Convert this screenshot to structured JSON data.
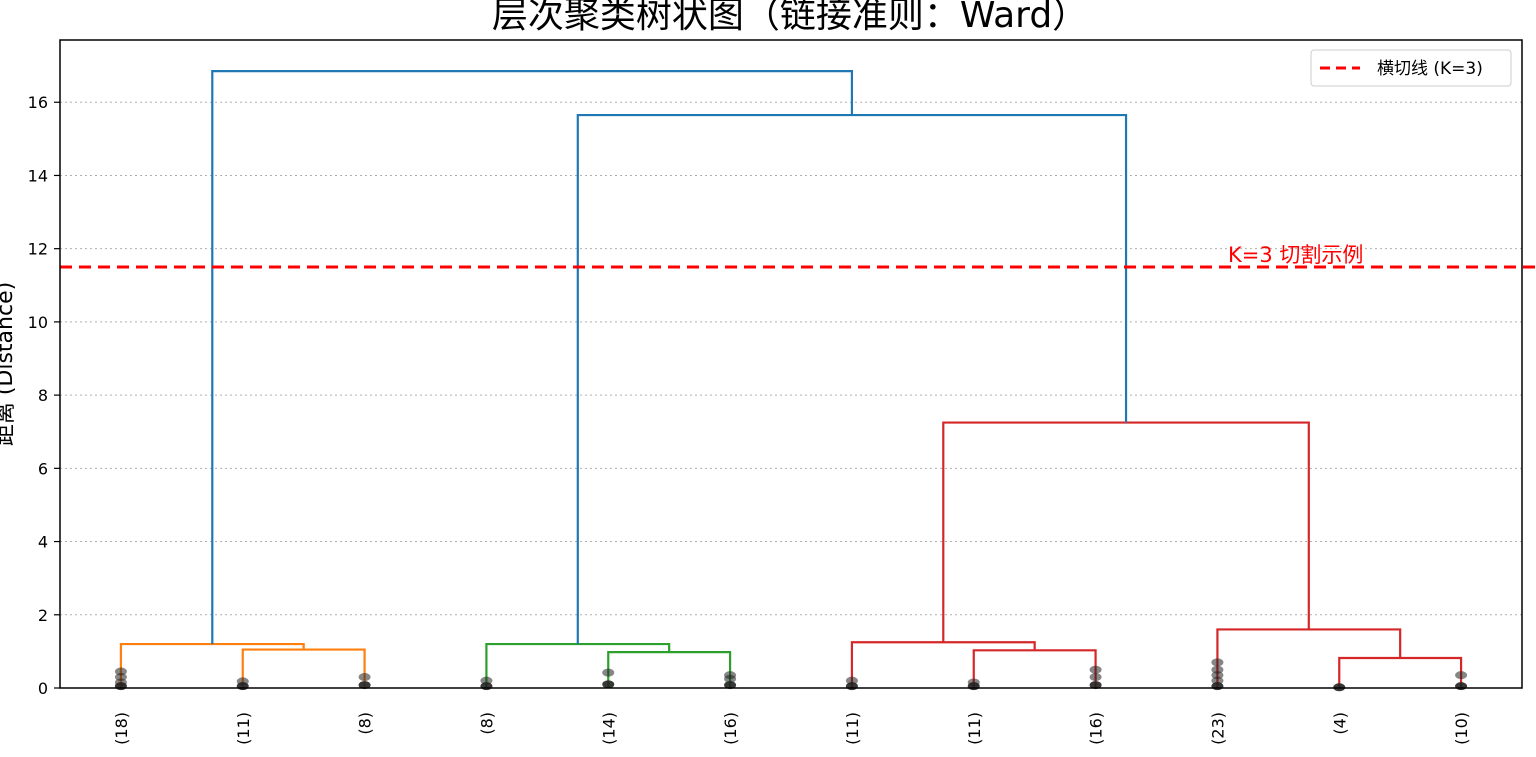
{
  "chart_data": {
    "type": "dendrogram",
    "title": "层次聚类树状图（链接准则：Ward）",
    "ylabel": "距离 (Distance)",
    "ylim": [
      0,
      17.7
    ],
    "yticks": [
      0,
      2,
      4,
      6,
      8,
      10,
      12,
      14,
      16
    ],
    "grid": "y-dotted",
    "leaf_labels": [
      "(18)",
      "(11)",
      "(8)",
      "(8)",
      "(14)",
      "(16)",
      "(11)",
      "(11)",
      "(16)",
      "(23)",
      "(4)",
      "(10)"
    ],
    "leaf_counts": [
      18,
      11,
      8,
      8,
      14,
      16,
      11,
      11,
      16,
      23,
      4,
      10
    ],
    "leaf_dot_heights": [
      [
        0.05,
        0.15,
        0.3,
        0.45
      ],
      [
        0.05,
        0.18
      ],
      [
        0.08,
        0.3
      ],
      [
        0.05,
        0.2
      ],
      [
        0.1,
        0.42
      ],
      [
        0.08,
        0.25,
        0.35
      ],
      [
        0.05,
        0.2
      ],
      [
        0.05,
        0.15
      ],
      [
        0.08,
        0.3,
        0.5
      ],
      [
        0.05,
        0.2,
        0.35,
        0.5,
        0.7
      ],
      [
        0.02
      ],
      [
        0.05,
        0.35
      ]
    ],
    "links": [
      {
        "left": 1,
        "right": 2,
        "height": 1.05,
        "color": "#ff7f0e"
      },
      {
        "left": 0,
        "right": "L0",
        "height": 1.2,
        "color": "#ff7f0e"
      },
      {
        "left": 4,
        "right": 5,
        "height": 0.98,
        "color": "#2ca02c"
      },
      {
        "left": 3,
        "right": "L2",
        "height": 1.2,
        "color": "#2ca02c"
      },
      {
        "left": 7,
        "right": 8,
        "height": 1.03,
        "color": "#d62728"
      },
      {
        "left": 6,
        "right": "L4",
        "height": 1.25,
        "color": "#d62728"
      },
      {
        "left": 10,
        "right": 11,
        "height": 0.82,
        "color": "#d62728"
      },
      {
        "left": 9,
        "right": "L6",
        "height": 1.6,
        "color": "#d62728"
      },
      {
        "left": "L5",
        "right": "L7",
        "height": 7.25,
        "color": "#d62728"
      },
      {
        "left": "L3",
        "right": "L8",
        "height": 15.65,
        "color": "#1f77b4"
      },
      {
        "left": "L1",
        "right": "L9",
        "height": 16.85,
        "color": "#1f77b4"
      }
    ],
    "cut_line": {
      "y": 11.5,
      "color": "#ff0000",
      "label": "横切线 (K=3)"
    },
    "annotation": {
      "text": "K=3 切割示例",
      "y": 11.5,
      "color": "#ff0000"
    },
    "legend": {
      "placement": "top-right",
      "entries": [
        "横切线 (K=3)"
      ]
    }
  }
}
